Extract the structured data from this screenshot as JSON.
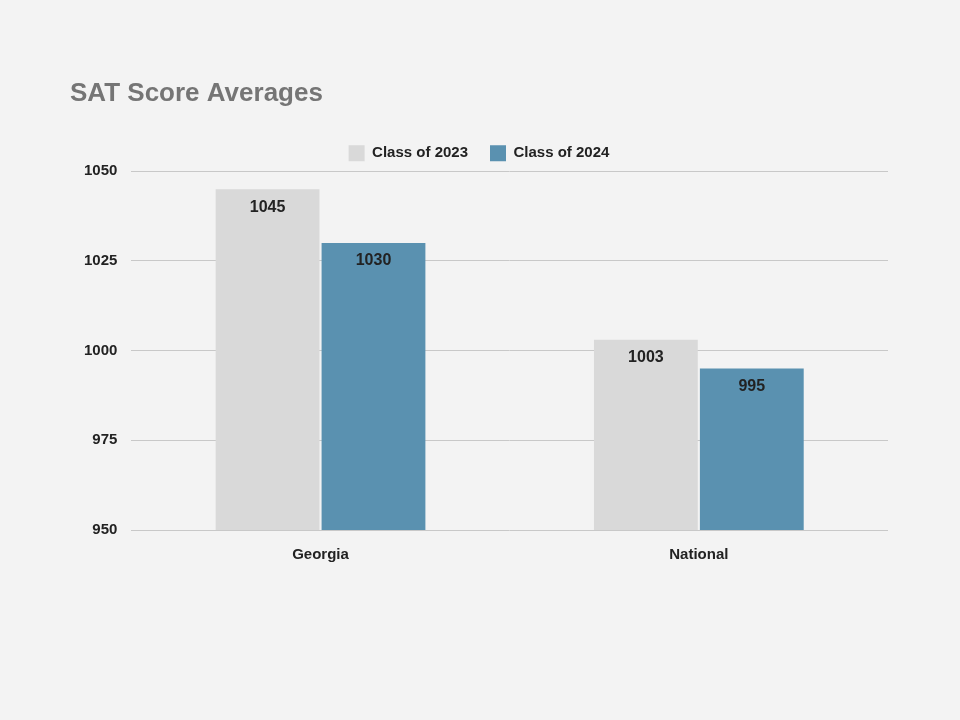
{
  "chart_data": {
    "type": "bar",
    "title": "SAT Score Averages",
    "categories": [
      "Georgia",
      "National"
    ],
    "series": [
      {
        "name": "Class of 2023",
        "color": "#d9d9d9",
        "values": [
          1045,
          1003
        ]
      },
      {
        "name": "Class of 2024",
        "color": "#5a91b0",
        "values": [
          1030,
          995
        ]
      }
    ],
    "ylim": [
      950,
      1050
    ],
    "yticks": [
      950,
      975,
      1000,
      1025,
      1050
    ],
    "grid": true,
    "legend": "top",
    "data_labels": true
  }
}
